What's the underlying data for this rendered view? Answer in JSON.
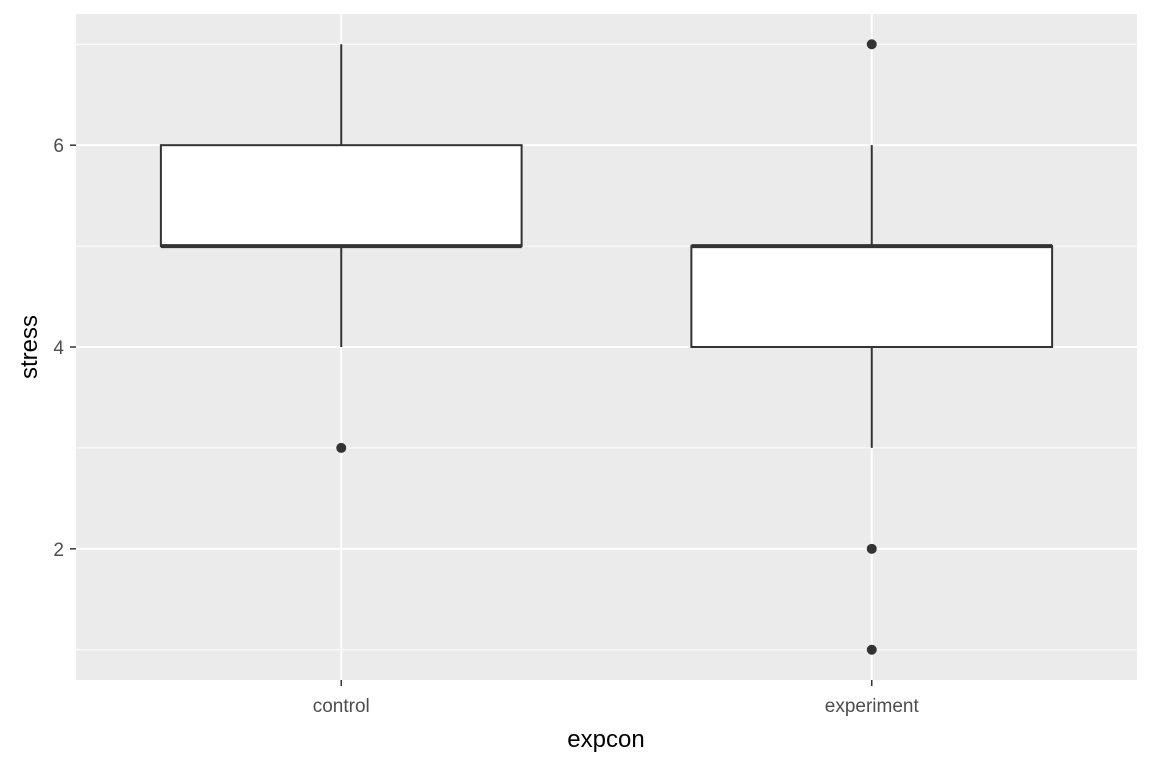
{
  "chart_data": {
    "type": "boxplot",
    "title": "",
    "xlabel": "expcon",
    "ylabel": "stress",
    "categories": [
      "control",
      "experiment"
    ],
    "ylim": [
      0.7,
      7.3
    ],
    "yticks": [
      2,
      4,
      6
    ],
    "grid": true,
    "legend": "none",
    "colors": {
      "panel_background": "#ebebeb",
      "grid_major": "#ffffff",
      "box_fill": "#ffffff",
      "box_line": "#333333",
      "outlier": "#333333",
      "tick_text": "#4d4d4d",
      "axis_title": "#000000"
    },
    "boxes": [
      {
        "category": "control",
        "whisker_low": 4,
        "q1": 5,
        "median": 5,
        "q3": 6,
        "whisker_high": 7,
        "outliers": [
          3
        ]
      },
      {
        "category": "experiment",
        "whisker_low": 3,
        "q1": 4,
        "median": 5,
        "q3": 5,
        "whisker_high": 6,
        "outliers": [
          7,
          2,
          1
        ]
      }
    ]
  }
}
